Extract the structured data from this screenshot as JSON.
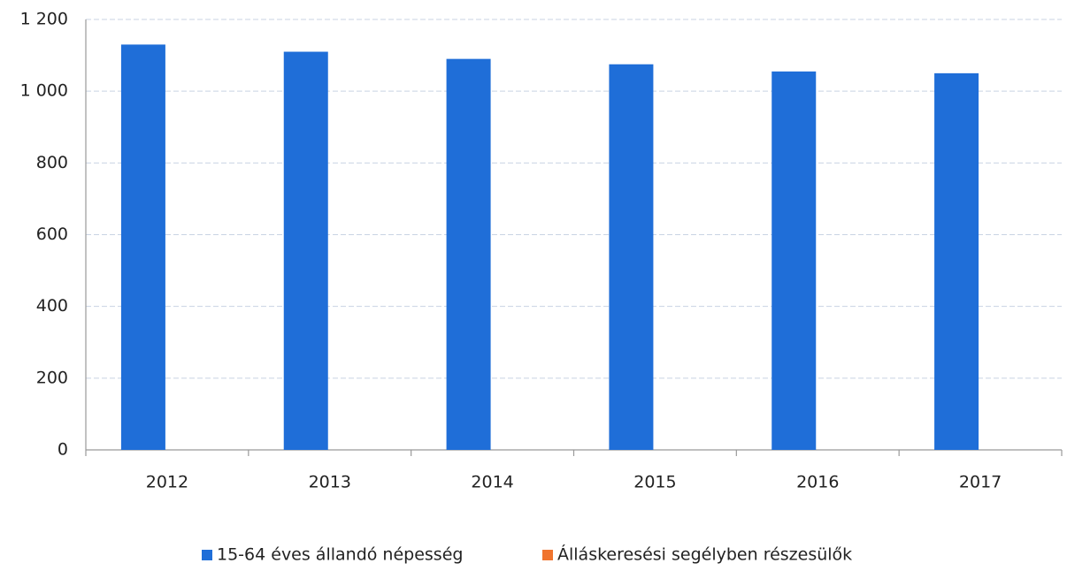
{
  "chart_data": {
    "type": "bar",
    "categories": [
      "2012",
      "2013",
      "2014",
      "2015",
      "2016",
      "2017"
    ],
    "series": [
      {
        "name": "15-64 éves állandó népesség",
        "color": "#1f6ed8",
        "values": [
          1130,
          1110,
          1090,
          1075,
          1055,
          1050
        ]
      },
      {
        "name": "Álláskeresési segélyben részesülők",
        "color": "#f0742e",
        "values": [
          0,
          0,
          0,
          0,
          0,
          0
        ]
      }
    ],
    "ylim": [
      0,
      1200
    ],
    "yticks": [
      0,
      200,
      400,
      600,
      800,
      {
        "value": 1000,
        "label": "1 000"
      },
      {
        "value": 1200,
        "label": "1 200"
      }
    ],
    "grid": true,
    "legend": "bottom"
  }
}
